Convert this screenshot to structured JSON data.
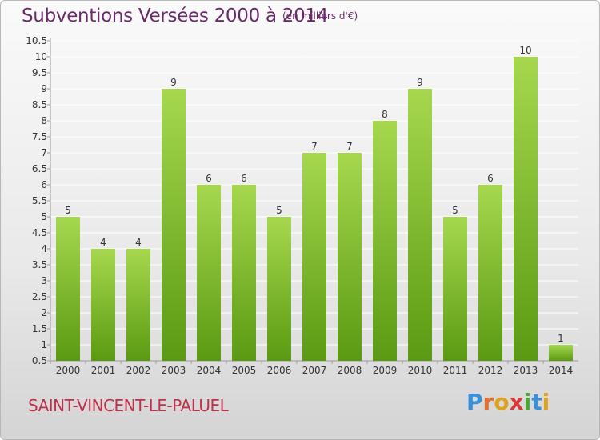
{
  "header": {
    "title": "Subventions Versées 2000 à 2014",
    "subtitle": "(en milliers d'€)"
  },
  "footer": {
    "commune": "SAINT-VINCENT-LE-PALUEL",
    "logo_text": "Proxiti",
    "logo_letters": [
      "P",
      "r",
      "o",
      "x",
      "i",
      "t",
      "i"
    ],
    "logo_colors": [
      "#3a8fd8",
      "#e0702a",
      "#e0a020",
      "#d83a3a",
      "#4aa838",
      "#3a8fd8",
      "#e0a020"
    ]
  },
  "colors": {
    "bar_top": "#a6d84e",
    "bar_bottom": "#5a9a12",
    "axis": "#9a9a9a",
    "grid": "#ffffff",
    "text": "#333333"
  },
  "chart_data": {
    "type": "bar",
    "categories": [
      "2000",
      "2001",
      "2002",
      "2003",
      "2004",
      "2005",
      "2006",
      "2007",
      "2008",
      "2009",
      "2010",
      "2011",
      "2012",
      "2013",
      "2014"
    ],
    "values": [
      5,
      4,
      4,
      9,
      6,
      6,
      5,
      7,
      7,
      8,
      9,
      5,
      6,
      10,
      1
    ],
    "ylim": [
      0.5,
      10.5
    ],
    "yticks": [
      "0.5",
      "1",
      "1.5",
      "2",
      "2.5",
      "3",
      "3.5",
      "4",
      "4.5",
      "5",
      "5.5",
      "6",
      "6.5",
      "7",
      "7.5",
      "8",
      "8.5",
      "9",
      "9.5",
      "10",
      "10.5"
    ],
    "grid": true,
    "title": "Subventions Versées 2000 à 2014",
    "xlabel": "",
    "ylabel": ""
  }
}
